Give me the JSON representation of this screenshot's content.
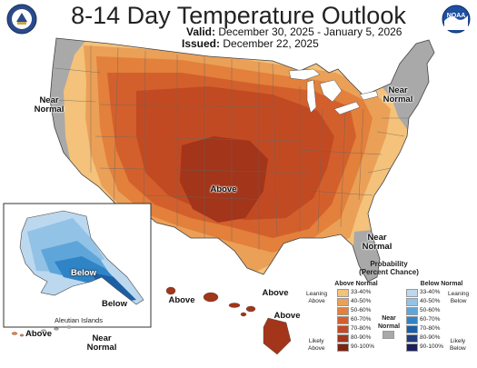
{
  "title": "8-14 Day Temperature Outlook",
  "valid_label": "Valid:",
  "valid_value": "December 30, 2025 - January 5, 2026",
  "issued_label": "Issued:",
  "issued_value": "December 22, 2025",
  "logos": {
    "left": "USDA/Commerce seal",
    "right": "NOAA logo",
    "right_text": "NOAA"
  },
  "region_labels": {
    "near_normal_west": "Near\nNormal",
    "near_normal_ne": "Near\nNormal",
    "near_normal_se": "Near\nNormal",
    "above_center": "Above",
    "below_alaska": "Below",
    "aleutian": "Aleutian Islands",
    "above_aleutian": "Above",
    "below_aleutian": "Below",
    "near_normal_aleutian": "Near\nNormal",
    "above_hawaii_w": "Above",
    "above_hawaii_c": "Above",
    "above_hawaii_e": "Above"
  },
  "legend": {
    "title": "Probability\n(Percent Chance)",
    "above_header": "Above Normal",
    "below_header": "Below Normal",
    "near_header": "Near\nNormal",
    "leaning_above": "Leaning\nAbove",
    "likely_above": "Likely\nAbove",
    "leaning_below": "Leaning\nBelow",
    "likely_below": "Likely\nBelow",
    "above_bins": [
      {
        "label": "33-40%",
        "color": "#f4c27a"
      },
      {
        "label": "40-50%",
        "color": "#eba057"
      },
      {
        "label": "50-60%",
        "color": "#e2803c"
      },
      {
        "label": "60-70%",
        "color": "#d3602c"
      },
      {
        "label": "70-80%",
        "color": "#c24a22"
      },
      {
        "label": "80-90%",
        "color": "#a2351a"
      },
      {
        "label": "90-100%",
        "color": "#7a2412"
      }
    ],
    "below_bins": [
      {
        "label": "33-40%",
        "color": "#bcd8ef"
      },
      {
        "label": "40-50%",
        "color": "#92c2e6"
      },
      {
        "label": "50-60%",
        "color": "#5ea6da"
      },
      {
        "label": "60-70%",
        "color": "#2f84c6"
      },
      {
        "label": "70-80%",
        "color": "#1b5fa6"
      },
      {
        "label": "80-90%",
        "color": "#203e7d"
      },
      {
        "label": "90-100%",
        "color": "#1c1f5a"
      }
    ],
    "near_color": "#a9a9a9"
  },
  "colors": {
    "near_normal": "#a9a9a9",
    "above_33_40": "#f4c27a",
    "above_40_50": "#eba057",
    "above_50_60": "#e2803c",
    "above_60_70": "#d3602c",
    "above_70_80": "#c24a22",
    "above_80_90": "#a2351a",
    "below_33_40": "#bcd8ef",
    "below_40_50": "#92c2e6",
    "below_50_60": "#5ea6da",
    "below_60_70": "#2f84c6",
    "below_70_80": "#1b5fa6"
  }
}
